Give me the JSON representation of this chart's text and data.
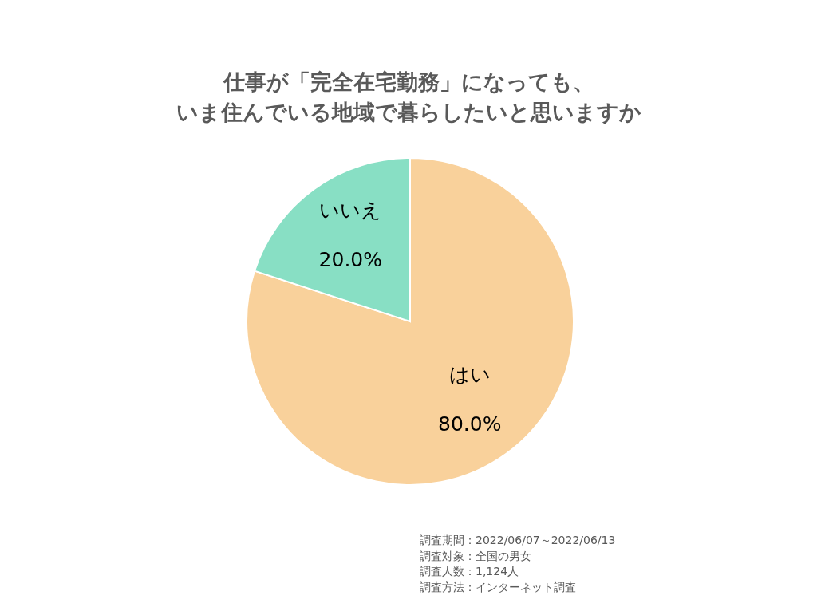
{
  "chart_data": {
    "type": "pie",
    "title": "仕事が「完全在宅勤務」になっても、",
    "subtitle": "いま住んでいる地域で暮らしたいと思いますか",
    "categories": [
      "はい",
      "いいえ"
    ],
    "values": [
      80,
      20
    ],
    "value_labels": [
      "80.0%",
      "20.0%"
    ],
    "colors": [
      "#f9d19b",
      "#88dfc4"
    ],
    "annotations": [
      "調査期間：2022/06/07～2022/06/13",
      "調査対象：全国の男女",
      "調査人数：1,124人",
      "調査方法：インターネット調査"
    ]
  }
}
